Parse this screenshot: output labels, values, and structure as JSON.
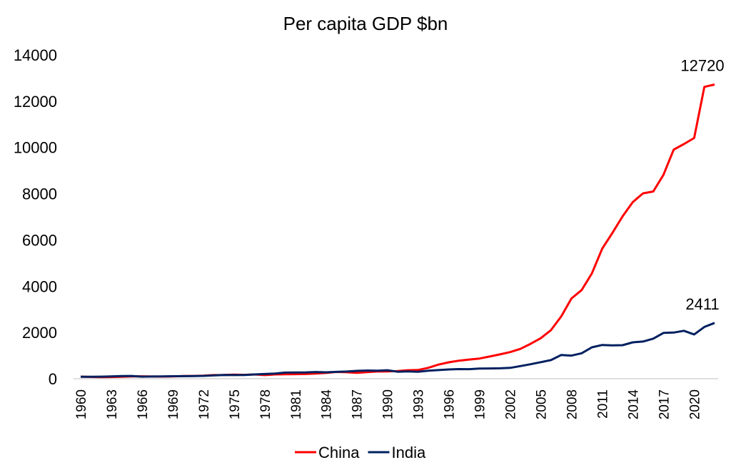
{
  "chart_data": {
    "type": "line",
    "title": "Per capita GDP $bn",
    "xlabel": "",
    "ylabel": "",
    "ylim": [
      0,
      14000
    ],
    "yticks": [
      0,
      2000,
      4000,
      6000,
      8000,
      10000,
      12000,
      14000
    ],
    "xticks": [
      1960,
      1963,
      1966,
      1969,
      1972,
      1975,
      1978,
      1981,
      1984,
      1987,
      1990,
      1993,
      1996,
      1999,
      2002,
      2005,
      2008,
      2011,
      2014,
      2017,
      2020
    ],
    "x": [
      1960,
      1961,
      1962,
      1963,
      1964,
      1965,
      1966,
      1967,
      1968,
      1969,
      1970,
      1971,
      1972,
      1973,
      1974,
      1975,
      1976,
      1977,
      1978,
      1979,
      1980,
      1981,
      1982,
      1983,
      1984,
      1985,
      1986,
      1987,
      1988,
      1989,
      1990,
      1991,
      1992,
      1993,
      1994,
      1995,
      1996,
      1997,
      1998,
      1999,
      2000,
      2001,
      2002,
      2003,
      2004,
      2005,
      2006,
      2007,
      2008,
      2009,
      2010,
      2011,
      2012,
      2013,
      2014,
      2015,
      2016,
      2017,
      2018,
      2019,
      2020,
      2021,
      2022
    ],
    "grid": false,
    "legend": "bottom",
    "series": [
      {
        "name": "China",
        "color": "#ff0000",
        "values": [
          90,
          76,
          70,
          73,
          85,
          98,
          104,
          97,
          91,
          100,
          113,
          119,
          132,
          157,
          160,
          178,
          165,
          185,
          156,
          184,
          195,
          197,
          203,
          225,
          251,
          294,
          281,
          252,
          284,
          311,
          318,
          333,
          366,
          377,
          473,
          610,
          709,
          781,
          828,
          873,
          959,
          1053,
          1149,
          1289,
          1509,
          1753,
          2099,
          2694,
          3468,
          3832,
          4550,
          5618,
          6301,
          7020,
          7636,
          8016,
          8094,
          8817,
          9905,
          10144,
          10409,
          12618,
          12720
        ],
        "end_label": "12720"
      },
      {
        "name": "India",
        "color": "#002060",
        "values": [
          82,
          85,
          89,
          101,
          116,
          119,
          90,
          96,
          99,
          107,
          112,
          118,
          122,
          143,
          163,
          158,
          161,
          186,
          205,
          224,
          266,
          270,
          274,
          291,
          276,
          296,
          310,
          340,
          354,
          346,
          368,
          303,
          317,
          301,
          346,
          374,
          400,
          415,
          413,
          442,
          443,
          451,
          470,
          546,
          627,
          714,
          806,
          1028,
          999,
          1102,
          1358,
          1458,
          1444,
          1450,
          1574,
          1606,
          1733,
          1981,
          1996,
          2072,
          1916,
          2239,
          2411
        ],
        "end_label": "2411"
      }
    ]
  }
}
